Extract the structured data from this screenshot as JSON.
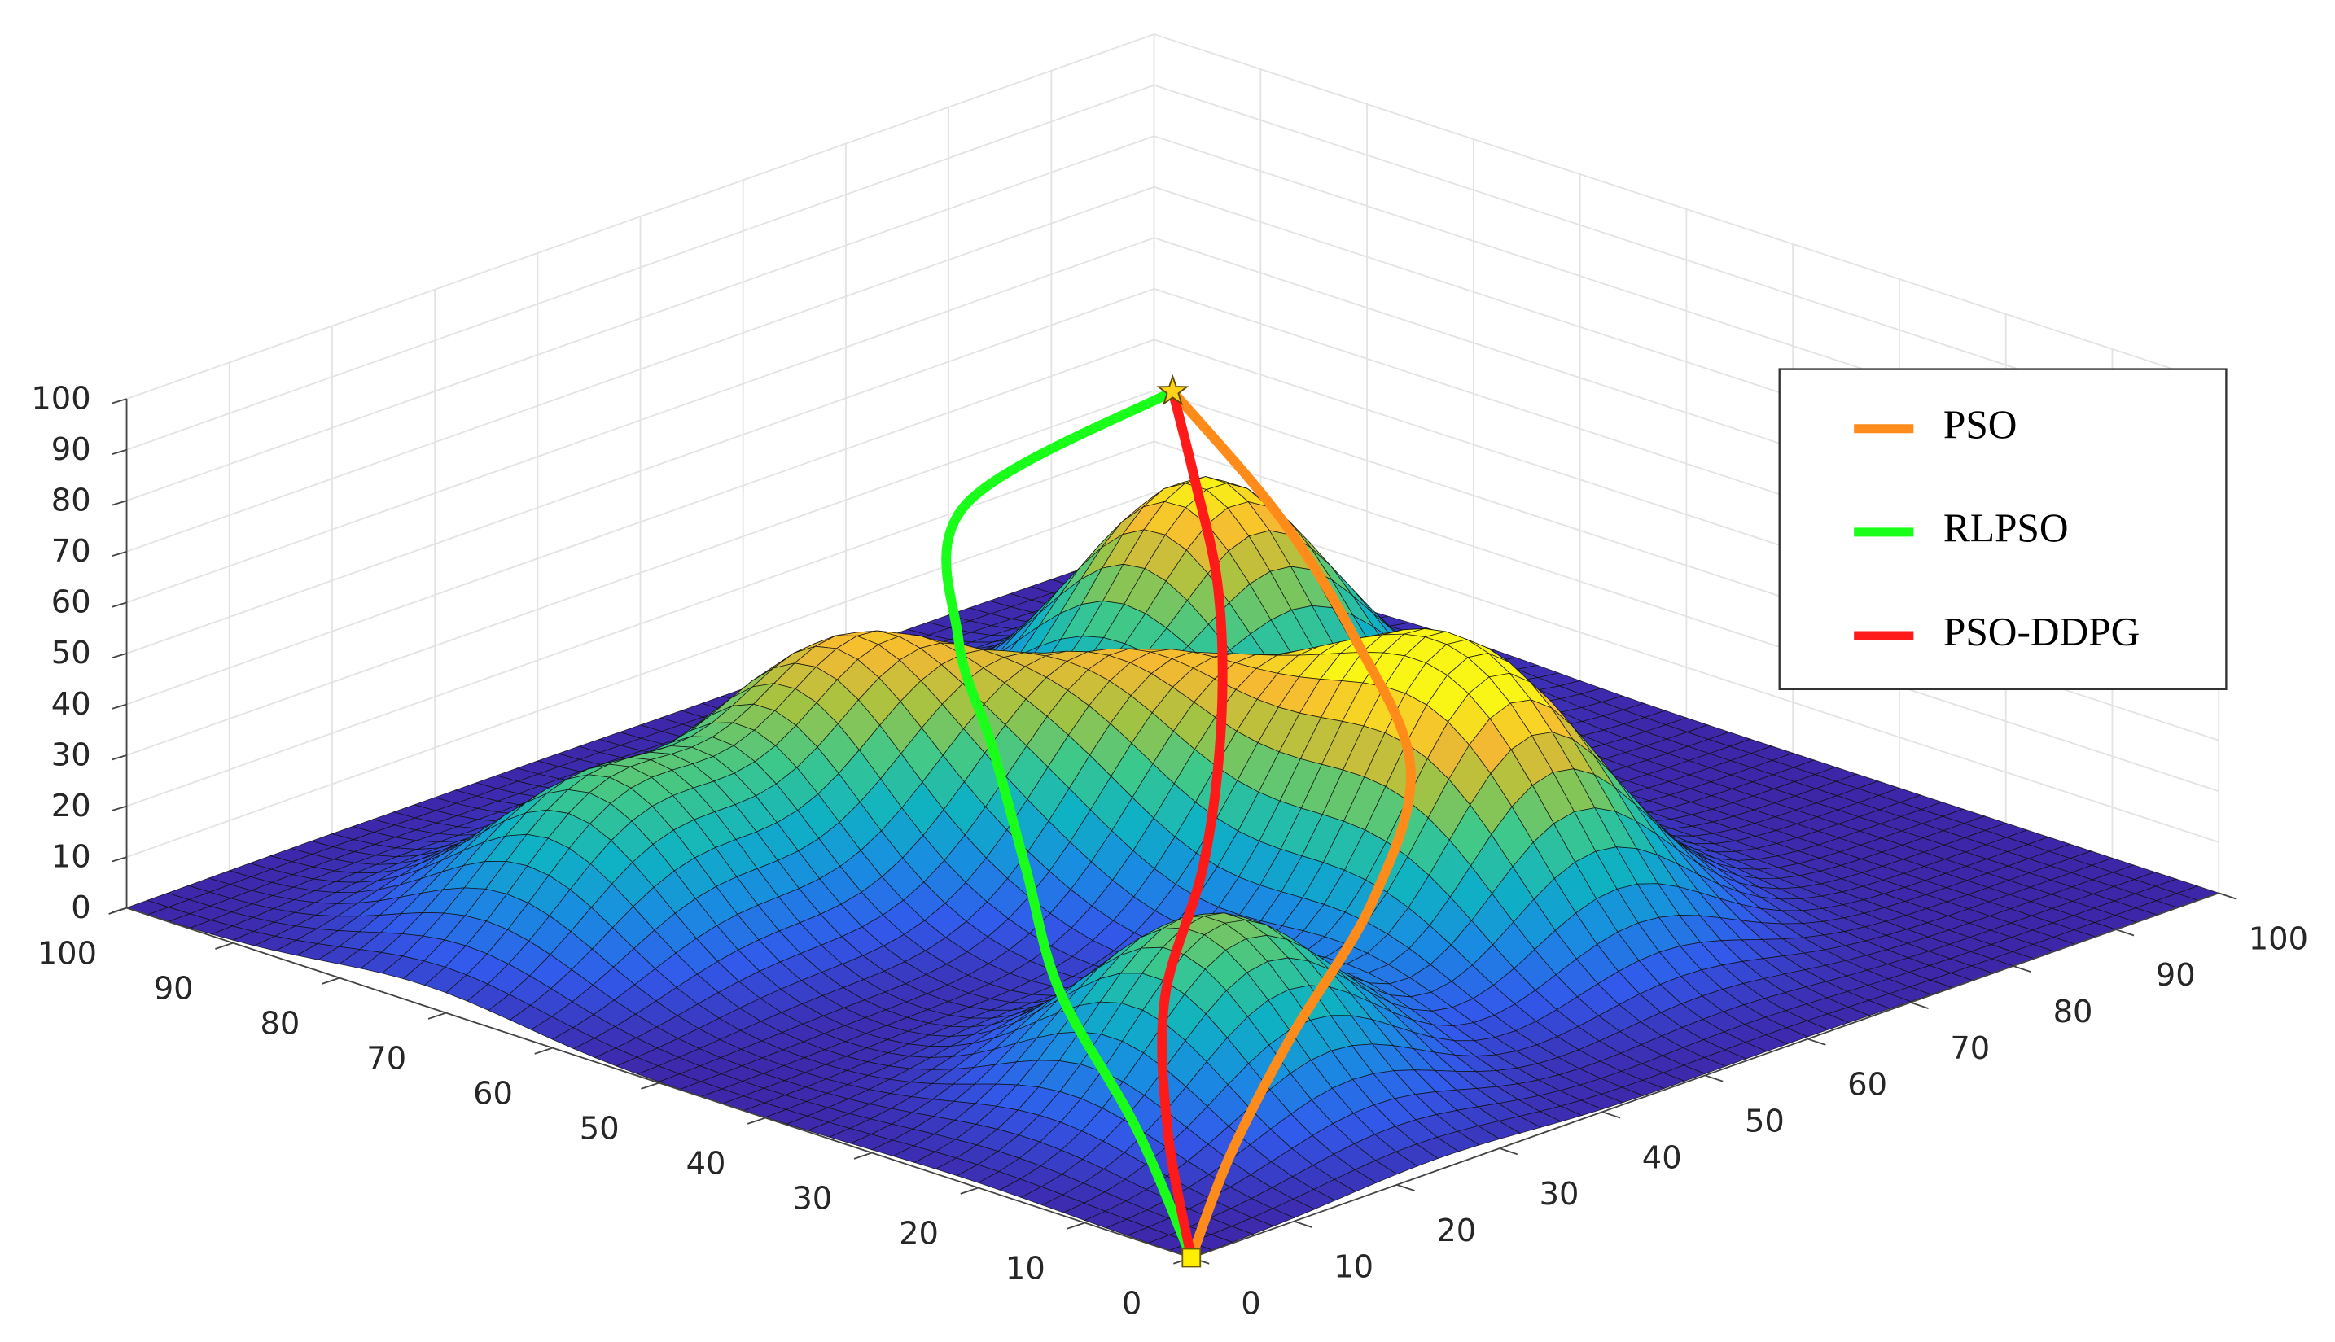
{
  "chart_data": {
    "type": "surface3d",
    "xlim": [
      0,
      100
    ],
    "ylim": [
      0,
      100
    ],
    "zlim": [
      0,
      100
    ],
    "xticks": [
      0,
      10,
      20,
      30,
      40,
      50,
      60,
      70,
      80,
      90,
      100
    ],
    "yticks": [
      0,
      10,
      20,
      30,
      40,
      50,
      60,
      70,
      80,
      90,
      100
    ],
    "zticks": [
      0,
      10,
      20,
      30,
      40,
      50,
      60,
      70,
      80,
      90,
      100
    ],
    "grid": true,
    "legend": "northeast",
    "peaks": [
      {
        "x": 75,
        "y": 71,
        "height": 50,
        "spread": 9
      },
      {
        "x": 40,
        "y": 71,
        "height": 40,
        "spread": 9
      },
      {
        "x": 18,
        "y": 72,
        "height": 30,
        "spread": 9
      },
      {
        "x": 51,
        "y": 55,
        "height": 35,
        "spread": 9
      },
      {
        "x": 60,
        "y": 40,
        "height": 33,
        "spread": 9
      },
      {
        "x": 58,
        "y": 27,
        "height": 40,
        "spread": 9
      },
      {
        "x": 24,
        "y": 21,
        "height": 35,
        "spread": 9
      }
    ],
    "series": [
      {
        "name": "PSO",
        "color": "#ff8c1a",
        "x": [
          0,
          8,
          18,
          30,
          40,
          45,
          48,
          50
        ],
        "y": [
          0,
          4,
          8,
          12,
          18,
          28,
          38,
          50
        ],
        "z": [
          0,
          12,
          25,
          40,
          55,
          70,
          85,
          100
        ]
      },
      {
        "name": "RLPSO",
        "color": "#1aff1a",
        "x": [
          0,
          5,
          10,
          15,
          20,
          25,
          35,
          50
        ],
        "y": [
          0,
          10,
          22,
          30,
          38,
          46,
          55,
          50
        ],
        "z": [
          0,
          15,
          30,
          45,
          60,
          72,
          85,
          100
        ]
      },
      {
        "name": "PSO-DDPG",
        "color": "#ff1a1a",
        "x": [
          0,
          6,
          14,
          24,
          34,
          42,
          47,
          50
        ],
        "y": [
          0,
          8,
          16,
          22,
          30,
          38,
          45,
          50
        ],
        "z": [
          0,
          15,
          30,
          45,
          60,
          75,
          88,
          100
        ]
      }
    ]
  }
}
